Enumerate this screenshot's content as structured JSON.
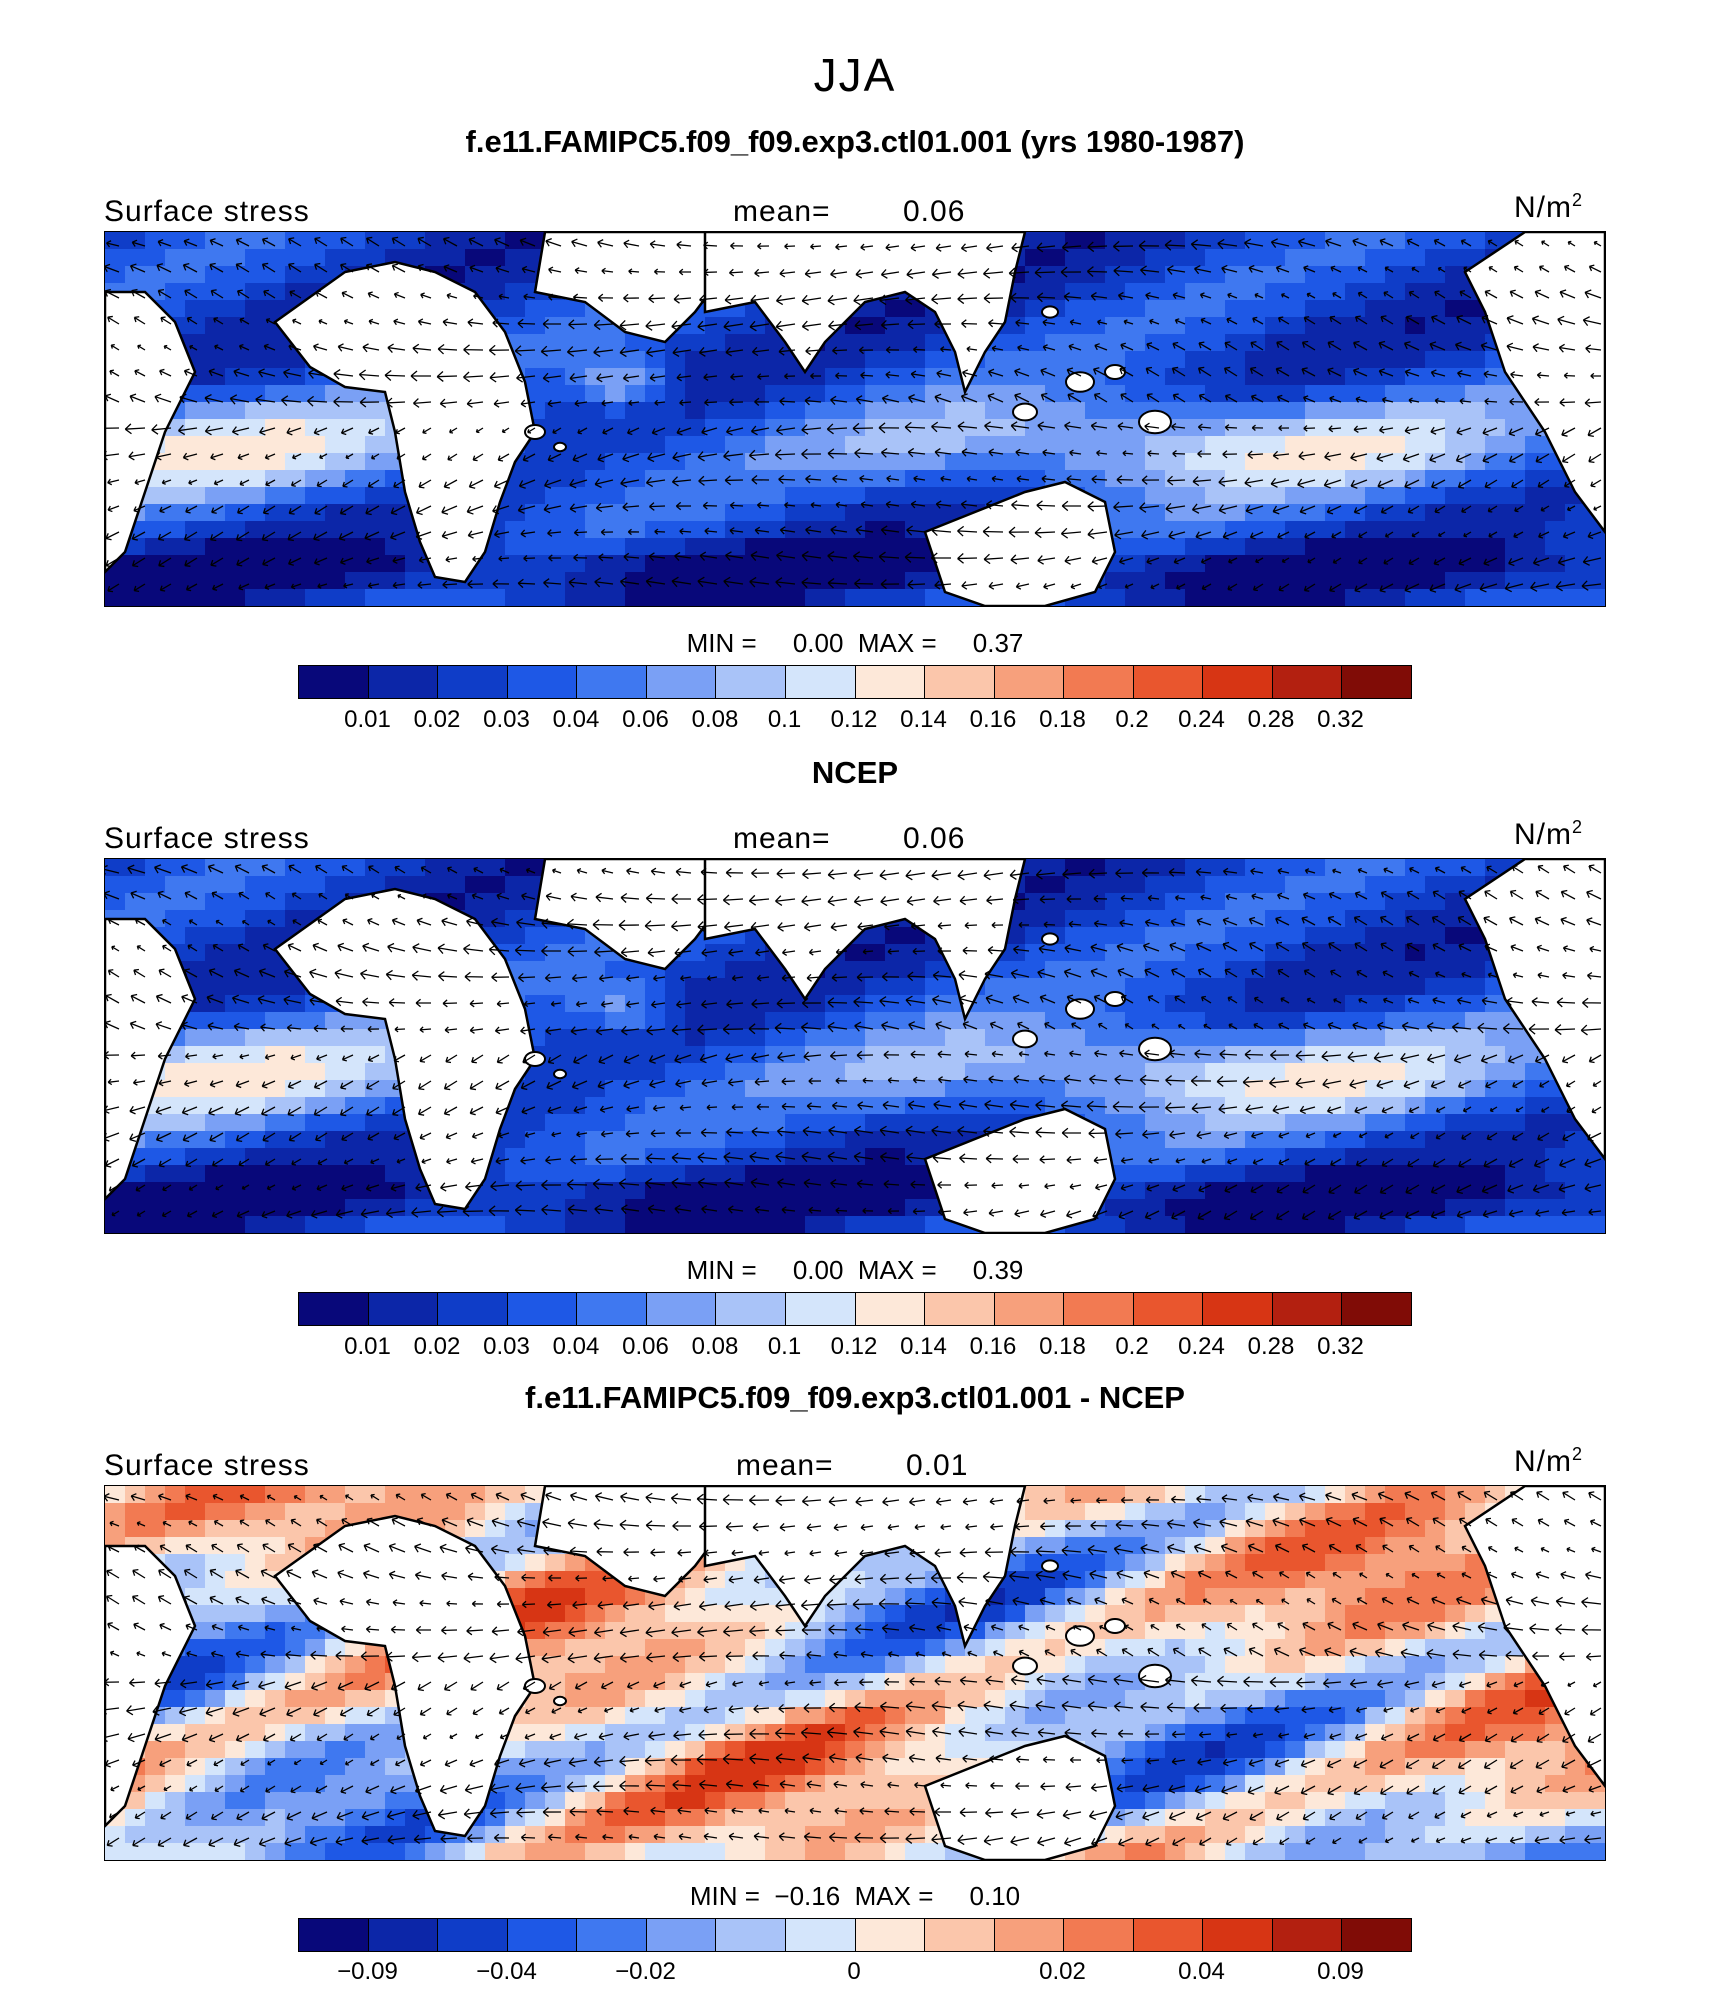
{
  "title": "JJA",
  "colors_main": [
    "#08087a",
    "#0c26a8",
    "#0f3dc8",
    "#1e58e6",
    "#3f78f0",
    "#7aa0f5",
    "#a9c3f8",
    "#d4e5fb",
    "#fde8d9",
    "#fbc6ab",
    "#f7a07c",
    "#f27a52",
    "#e9562e",
    "#d73514",
    "#b32010",
    "#800c06"
  ],
  "colors_diff": [
    "#08087a",
    "#0c26a8",
    "#0f3dc8",
    "#1e58e6",
    "#3f78f0",
    "#7aa0f5",
    "#a9c3f8",
    "#d4e5fb",
    "#fde8d9",
    "#fbc6ab",
    "#f7a07c",
    "#f27a52",
    "#e9562e",
    "#d73514",
    "#b32010",
    "#800c06"
  ],
  "chart_data": [
    {
      "type": "heatmap",
      "title": "f.e11.FAMIPC5.f09_f09.exp3.ctl01.001 (yrs 1980-1987)",
      "variable": "Surface stress",
      "mean_label": "mean=",
      "mean": "0.06",
      "units": "N/m",
      "units_sup": "2",
      "min_label": "MIN =",
      "min": "0.00",
      "max_label": "MAX =",
      "max": "0.37",
      "colorbar_ticks": [
        "0.01",
        "0.02",
        "0.03",
        "0.04",
        "0.06",
        "0.08",
        "0.1",
        "0.12",
        "0.14",
        "0.16",
        "0.18",
        "0.2",
        "0.24",
        "0.28",
        "0.32"
      ]
    },
    {
      "type": "heatmap",
      "title": "NCEP",
      "variable": "Surface stress",
      "mean_label": "mean=",
      "mean": "0.06",
      "units": "N/m",
      "units_sup": "2",
      "min_label": "MIN =",
      "min": "0.00",
      "max_label": "MAX =",
      "max": "0.39",
      "colorbar_ticks": [
        "0.01",
        "0.02",
        "0.03",
        "0.04",
        "0.06",
        "0.08",
        "0.1",
        "0.12",
        "0.14",
        "0.16",
        "0.18",
        "0.2",
        "0.24",
        "0.28",
        "0.32"
      ]
    },
    {
      "type": "heatmap",
      "title": "f.e11.FAMIPC5.f09_f09.exp3.ctl01.001 - NCEP",
      "variable": "Surface stress",
      "mean_label": "mean=",
      "mean": "0.01",
      "units": "N/m",
      "units_sup": "2",
      "min_label": "MIN =",
      "min": "−0.16",
      "max_label": "MAX =",
      "max": "0.10",
      "colorbar_ticks": [
        "−0.09",
        "−0.04",
        "−0.02",
        "0",
        "0.02",
        "0.04",
        "0.09"
      ]
    }
  ]
}
